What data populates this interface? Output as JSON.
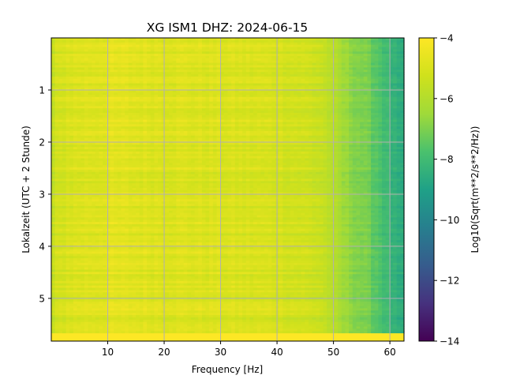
{
  "chart_data": {
    "type": "heatmap",
    "title": "XG ISM1  DHZ: 2024-06-15",
    "xlabel": "Frequency [Hz]",
    "ylabel": "Lokalzeit (UTC + 2 Stunde)",
    "colorbar_label": "Log10(Sqrt(m**2/s**2/Hz))",
    "colormap": "viridis",
    "xlim": [
      0.0,
      62.5
    ],
    "ylim": [
      5.82,
      0.0
    ],
    "y_inverted": true,
    "x_ticks": [
      10,
      20,
      30,
      40,
      50,
      60
    ],
    "x_tick_labels": [
      "10",
      "20",
      "30",
      "40",
      "50",
      "60"
    ],
    "y_ticks": [
      1,
      2,
      3,
      4,
      5
    ],
    "y_tick_labels": [
      "1",
      "2",
      "3",
      "4",
      "5"
    ],
    "clim": [
      -14,
      -4
    ],
    "colorbar_ticks": [
      -4,
      -6,
      -8,
      -10,
      -12,
      -14
    ],
    "colorbar_tick_labels": [
      "−4",
      "−6",
      "−8",
      "−10",
      "−12",
      "−14"
    ],
    "grid": true,
    "level_profile": {
      "frequency_hz": [
        0.0,
        1.0,
        3.0,
        10.0,
        20.0,
        30.0,
        40.0,
        45.0,
        48.0,
        50.0,
        52.0,
        55.0,
        58.0,
        60.0,
        62.5
      ],
      "log10_amplitude": [
        -5.8,
        -5.3,
        -5.0,
        -4.8,
        -4.9,
        -5.0,
        -5.1,
        -5.3,
        -5.5,
        -6.0,
        -6.6,
        -7.0,
        -7.6,
        -8.3,
        -8.8
      ]
    },
    "bottom_band": {
      "time_from": 5.67,
      "time_to": 5.82,
      "log10_amplitude": -4.0
    }
  }
}
